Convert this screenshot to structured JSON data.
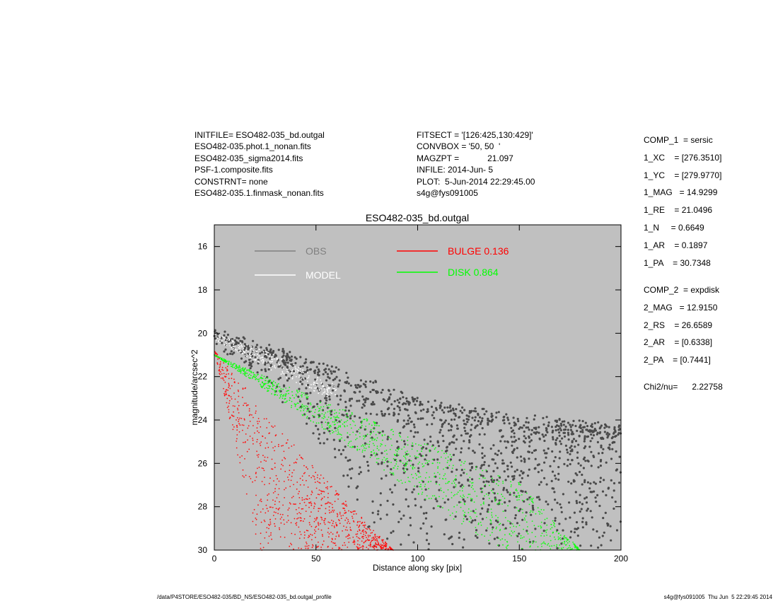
{
  "header_left": [
    "INITFILE= ESO482-035_bd.outgal",
    "ESO482-035.phot.1_nonan.fits",
    "ESO482-035_sigma2014.fits",
    "PSF-1.composite.fits",
    "CONSTRNT= none",
    "ESO482-035.1.finmask_nonan.fits"
  ],
  "header_right": [
    "FITSECT = '[126:425,130:429]'",
    "CONVBOX = '50, 50  '",
    "MAGZPT =            21.097",
    "INFILE: 2014-Jun- 5",
    "PLOT:  5-Jun-2014 22:29:45.00",
    "s4g@fys091005"
  ],
  "params_comp1": [
    "COMP_1  = sersic",
    "1_XC    = [276.3510]",
    "1_YC    = [279.9770]",
    "1_MAG   = 14.9299",
    "1_RE    = 21.0496",
    "1_N     = 0.6649",
    "1_AR    = 0.1897",
    "1_PA    = 30.7348"
  ],
  "params_comp2": [
    "COMP_2  = expdisk",
    "2_MAG   = 12.9150",
    "2_RS    = 26.6589",
    "2_AR    = [0.6338]",
    "2_PA    = [0.7441]"
  ],
  "chi2": "Chi2/nu=      2.22758",
  "footer_left": "/data/P4STORE/ESO482-035/BD_NS/ESO482-035_bd.outgal_profile",
  "footer_right": "s4g@fys091005  Thu Jun  5 22:29:45 2014",
  "chart_data": {
    "type": "scatter",
    "title": "ESO482-035_bd.outgal",
    "xlabel": "Distance along sky [pix]",
    "ylabel": "magnitude/arcsec^2",
    "xlim": [
      0,
      200
    ],
    "ylim": [
      30,
      15
    ],
    "y_inverted": true,
    "xticks": [
      "0",
      "50",
      "100",
      "150",
      "200"
    ],
    "yticks": [
      "16",
      "18",
      "20",
      "22",
      "24",
      "26",
      "28",
      "30"
    ],
    "background": "#c0c0c0",
    "legend": [
      {
        "label": "OBS",
        "color": "#808080"
      },
      {
        "label": "MODEL",
        "color": "#ffffff"
      },
      {
        "label": "BULGE  0.136",
        "color": "#ff0000"
      },
      {
        "label": "DISK  0.864",
        "color": "#00ff00"
      }
    ],
    "series": [
      {
        "name": "OBS",
        "color": "#505050",
        "upper_edge": [
          [
            0,
            20.0
          ],
          [
            50,
            21.5
          ],
          [
            100,
            23.2
          ],
          [
            150,
            24.0
          ],
          [
            200,
            24.5
          ]
        ],
        "lower_edge": [
          [
            0,
            20.3
          ],
          [
            30,
            22.5
          ],
          [
            60,
            26
          ],
          [
            80,
            30
          ],
          [
            200,
            30
          ]
        ]
      },
      {
        "name": "BULGE",
        "color": "#ff0000",
        "upper_edge": [
          [
            0,
            20.8
          ],
          [
            50,
            26.3
          ],
          [
            88,
            30
          ]
        ],
        "lower_edge": [
          [
            0,
            20.8
          ],
          [
            22,
            30
          ]
        ]
      },
      {
        "name": "DISK",
        "color": "#00ff00",
        "upper_edge": [
          [
            0,
            21.0
          ],
          [
            150,
            26.9
          ],
          [
            180,
            30
          ]
        ],
        "lower_edge": [
          [
            0,
            21.0
          ],
          [
            140,
            30
          ]
        ]
      },
      {
        "name": "MODEL",
        "color": "#ffffff",
        "upper_edge": [
          [
            0,
            20.0
          ],
          [
            30,
            21.0
          ],
          [
            60,
            22.4
          ]
        ],
        "lower_edge": [
          [
            0,
            20.3
          ],
          [
            30,
            21.8
          ],
          [
            60,
            23.2
          ]
        ]
      }
    ]
  }
}
